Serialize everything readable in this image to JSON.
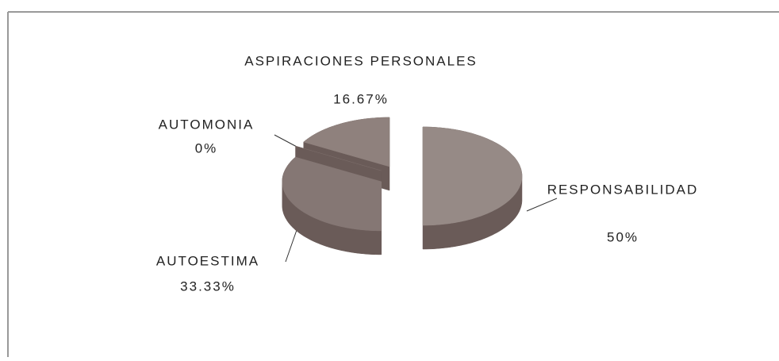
{
  "chart_data": {
    "type": "pie3d",
    "categories": [
      "RESPONSABILIDAD",
      "AUTOESTIMA",
      "AUTOMONIA",
      "ASPIRACIONES PERSONALES"
    ],
    "values": [
      50,
      33.33,
      0,
      16.67
    ],
    "value_labels": [
      "50%",
      "33.33%",
      "0%",
      "16.67%"
    ],
    "colors": [
      "#968a86",
      "#857774",
      "#7a6b68",
      "#8f817d"
    ],
    "side_color": "#6a5b58"
  }
}
